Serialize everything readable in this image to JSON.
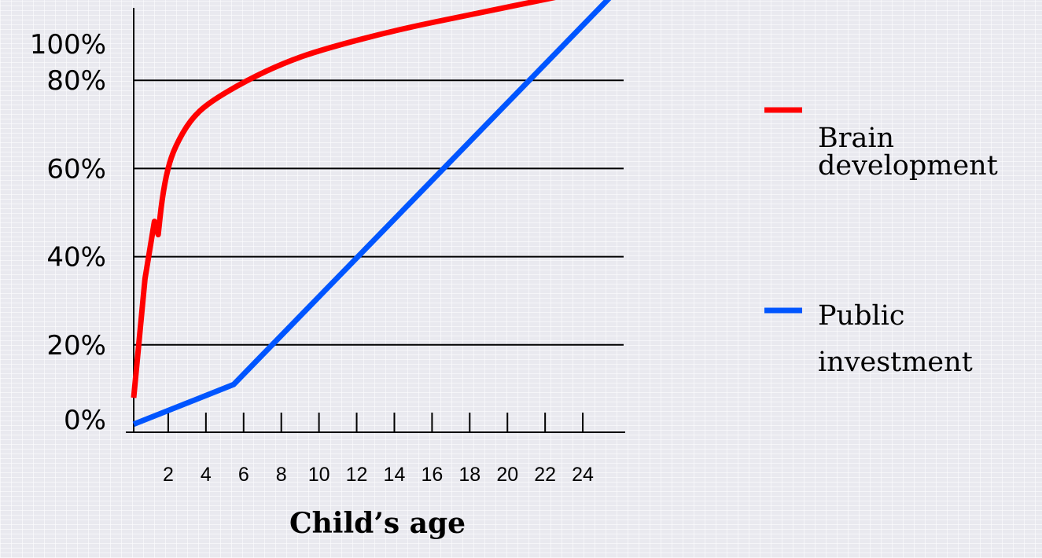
{
  "chart_data": {
    "type": "line",
    "xlabel": "Child’s age",
    "ylabel": "",
    "x_ticks": [
      "2",
      "4",
      "6",
      "8",
      "10",
      "12",
      "14",
      "16",
      "18",
      "20",
      "22",
      "24"
    ],
    "y_ticks": [
      "0%",
      "20%",
      "40%",
      "60%",
      "80%",
      "100%"
    ],
    "ylim": [
      0,
      100
    ],
    "xlim": [
      0,
      26
    ],
    "grid": "horizontal",
    "legend_position": "right",
    "series": [
      {
        "name": "Brain development",
        "color": "#ff0000",
        "points": [
          [
            0,
            8
          ],
          [
            0.6,
            35
          ],
          [
            1.1,
            48
          ],
          [
            1.3,
            45
          ],
          [
            1.5,
            53
          ],
          [
            1.8,
            60
          ],
          [
            2.2,
            65
          ],
          [
            3,
            71
          ],
          [
            4,
            75
          ],
          [
            6,
            80
          ],
          [
            8,
            84
          ],
          [
            10,
            87
          ],
          [
            14,
            91.5
          ],
          [
            18,
            95
          ],
          [
            22,
            98.5
          ],
          [
            26,
            102
          ]
        ]
      },
      {
        "name": "Public investment",
        "color": "#0055ff",
        "points": [
          [
            0,
            2
          ],
          [
            5.3,
            11
          ],
          [
            26,
            102
          ]
        ]
      }
    ],
    "legend_labels": [
      [
        "Brain",
        "development"
      ],
      [
        "Public",
        "investment"
      ]
    ]
  }
}
